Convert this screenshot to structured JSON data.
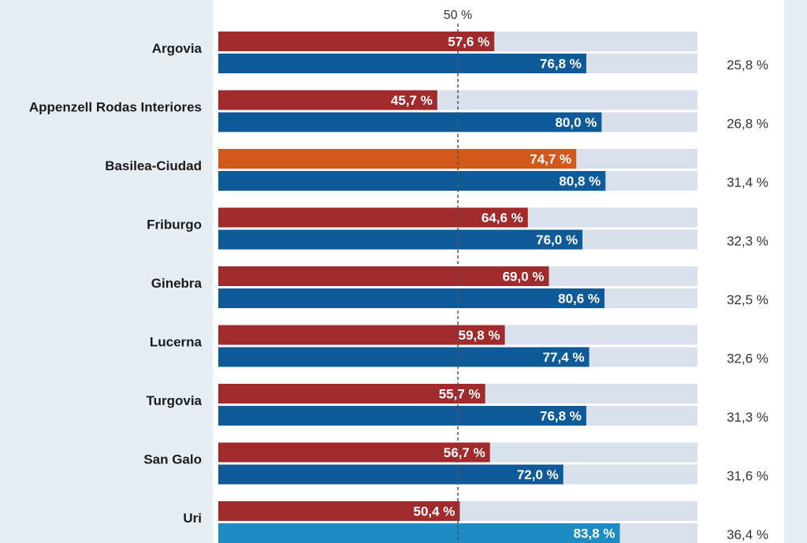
{
  "chart_data": {
    "type": "bar",
    "orientation": "horizontal",
    "xlim": [
      0,
      100
    ],
    "reference_line": {
      "value": 50,
      "label": "50 %"
    },
    "categories": [
      "Argovia",
      "Appenzell Rodas Interiores",
      "Basilea-Ciudad",
      "Friburgo",
      "Ginebra",
      "Lucerna",
      "Turgovia",
      "San Galo",
      "Uri"
    ],
    "series": [
      {
        "values": [
          57.6,
          45.7,
          74.7,
          64.6,
          69.0,
          59.8,
          55.7,
          56.7,
          50.4
        ],
        "labels": [
          "57,6 %",
          "45,7 %",
          "74,7 %",
          "64,6 %",
          "69,0 %",
          "59,8 %",
          "55,7 %",
          "56,7 %",
          "50,4 %"
        ],
        "colors": [
          "#a12a2c",
          "#a12a2c",
          "#d2591b",
          "#a12a2c",
          "#a12a2c",
          "#a12a2c",
          "#a12a2c",
          "#a12a2c",
          "#a12a2c"
        ]
      },
      {
        "values": [
          76.8,
          80.0,
          80.8,
          76.0,
          80.6,
          77.4,
          76.8,
          72.0,
          83.8
        ],
        "labels": [
          "76,8 %",
          "80,0 %",
          "80,8 %",
          "76,0 %",
          "80,6 %",
          "77,4 %",
          "76,8 %",
          "72,0 %",
          "83,8 %"
        ],
        "colors": [
          "#0f5a99",
          "#0f5a99",
          "#0f5a99",
          "#0f5a99",
          "#0f5a99",
          "#0f5a99",
          "#0f5a99",
          "#0f5a99",
          "#1d8cc4"
        ]
      }
    ],
    "right_values": [
      "25,8 %",
      "26,8 %",
      "31,4 %",
      "32,3 %",
      "32,5 %",
      "32,6 %",
      "31,3 %",
      "31,6 %",
      "36,4 %"
    ],
    "track_color": "#d9e2ec",
    "grid": false,
    "legend": "none"
  }
}
